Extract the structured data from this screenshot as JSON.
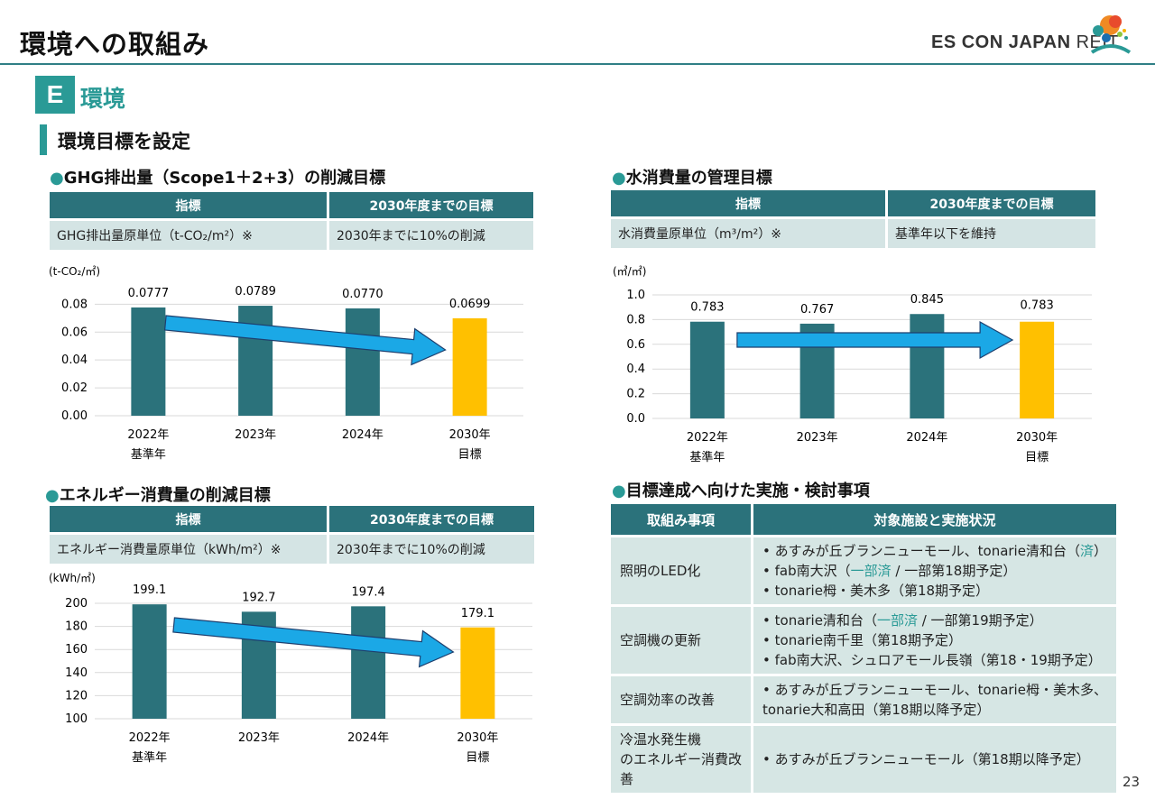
{
  "header": {
    "title": "環境への取組み",
    "logo_text_bold": "ES CON JAPAN",
    "logo_text_light": " REIT"
  },
  "section": {
    "badge": "E",
    "label": "環境",
    "subtitle": "環境目標を設定"
  },
  "ghg": {
    "heading": "GHG排出量（Scope1＋2+3）の削減目標",
    "table": {
      "col1": "指標",
      "col2": "2030年度までの目標",
      "indicator": "GHG排出量原単位（t-CO₂/m²）※",
      "goal": "2030年までに10%の削減"
    },
    "chart_data": {
      "type": "bar",
      "unit": "(t-CO₂/㎡)",
      "categories": [
        "2022年",
        "2023年",
        "2024年",
        "2030年"
      ],
      "sublabels": [
        "基準年",
        "",
        "",
        "目標"
      ],
      "values": [
        0.0777,
        0.0789,
        0.077,
        0.0699
      ],
      "value_labels": [
        "0.0777",
        "0.0789",
        "0.0770",
        "0.0699"
      ],
      "yticks": [
        "0.00",
        "0.02",
        "0.04",
        "0.06",
        "0.08"
      ],
      "ylim": [
        0,
        0.088
      ],
      "colors": [
        "#2b727b",
        "#2b727b",
        "#2b727b",
        "#ffc000"
      ]
    }
  },
  "water": {
    "heading": "水消費量の管理目標",
    "table": {
      "col1": "指標",
      "col2": "2030年度までの目標",
      "indicator": "水消費量原単位（m³/m²）※",
      "goal": "基準年以下を維持"
    },
    "chart_data": {
      "type": "bar",
      "unit": "(㎥/㎡)",
      "categories": [
        "2022年",
        "2023年",
        "2024年",
        "2030年"
      ],
      "sublabels": [
        "基準年",
        "",
        "",
        "目標"
      ],
      "values": [
        0.783,
        0.767,
        0.845,
        0.783
      ],
      "value_labels": [
        "0.783",
        "0.767",
        "0.845",
        "0.783"
      ],
      "yticks": [
        "0.0",
        "0.2",
        "0.4",
        "0.6",
        "0.8",
        "1.0"
      ],
      "ylim": [
        0,
        1.0
      ],
      "colors": [
        "#2b727b",
        "#2b727b",
        "#2b727b",
        "#ffc000"
      ]
    }
  },
  "energy": {
    "heading": "エネルギー消費量の削減目標",
    "table": {
      "col1": "指標",
      "col2": "2030年度までの目標",
      "indicator": "エネルギー消費量原単位（kWh/m²）※",
      "goal": "2030年までに10%の削減"
    },
    "chart_data": {
      "type": "bar",
      "unit": "(kWh/㎡)",
      "categories": [
        "2022年",
        "2023年",
        "2024年",
        "2030年"
      ],
      "sublabels": [
        "基準年",
        "",
        "",
        "目標"
      ],
      "values": [
        199.1,
        192.7,
        197.4,
        179.1
      ],
      "value_labels": [
        "199.1",
        "192.7",
        "197.4",
        "179.1"
      ],
      "yticks": [
        "100",
        "120",
        "140",
        "160",
        "180",
        "200"
      ],
      "ylim": [
        100,
        200
      ],
      "colors": [
        "#2b727b",
        "#2b727b",
        "#2b727b",
        "#ffc000"
      ]
    }
  },
  "actions": {
    "heading": "目標達成へ向けた実施・検討事項",
    "col1": "取組み事項",
    "col2": "対象施設と実施状況",
    "rows": [
      {
        "item": "照明のLED化",
        "lines": [
          [
            "• あすみが丘ブランニューモール、tonarie清和台（",
            "済",
            "）"
          ],
          [
            "• fab南大沢（",
            "一部済",
            " / 一部第18期予定）"
          ],
          [
            "• tonarie栂・美木多（第18期予定）"
          ]
        ]
      },
      {
        "item": "空調機の更新",
        "lines": [
          [
            "• tonarie清和台（",
            "一部済",
            " / 一部第19期予定）"
          ],
          [
            "• tonarie南千里（第18期予定）"
          ],
          [
            "• fab南大沢、シュロアモール長嶺（第18・19期予定）"
          ]
        ]
      },
      {
        "item": "空調効率の改善",
        "lines": [
          [
            "• あすみが丘ブランニューモール、tonarie栂・美木多、"
          ],
          [
            "   tonarie大和高田（第18期以降予定）"
          ]
        ]
      },
      {
        "item": "冷温水発生機のエネルギー消費改善",
        "lines": [
          [
            "• あすみが丘ブランニューモール（第18期以降予定）"
          ]
        ]
      }
    ]
  },
  "page_number": "23"
}
